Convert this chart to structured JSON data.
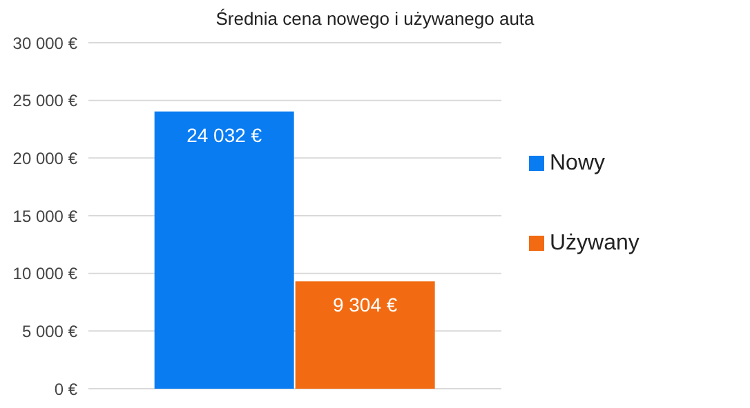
{
  "chart_data": {
    "type": "bar",
    "title": "Średnia cena nowego i używanego auta",
    "categories": [
      null
    ],
    "series": [
      {
        "name": "Nowy",
        "color": "#0a7cf2",
        "values": [
          24032
        ],
        "value_labels": [
          "24 032 €"
        ]
      },
      {
        "name": "Używany",
        "color": "#f26b12",
        "values": [
          9304
        ],
        "value_labels": [
          "9 304 €"
        ]
      }
    ],
    "ylim": [
      0,
      30000
    ],
    "yticks": [
      {
        "value": 0,
        "label": "0 €"
      },
      {
        "value": 5000,
        "label": "5 000 €"
      },
      {
        "value": 10000,
        "label": "10 000 €"
      },
      {
        "value": 15000,
        "label": "15 000 €"
      },
      {
        "value": 20000,
        "label": "20 000 €"
      },
      {
        "value": 25000,
        "label": "25 000 €"
      },
      {
        "value": 30000,
        "label": "30 000 €"
      }
    ],
    "grid": "y",
    "legend": "right"
  }
}
